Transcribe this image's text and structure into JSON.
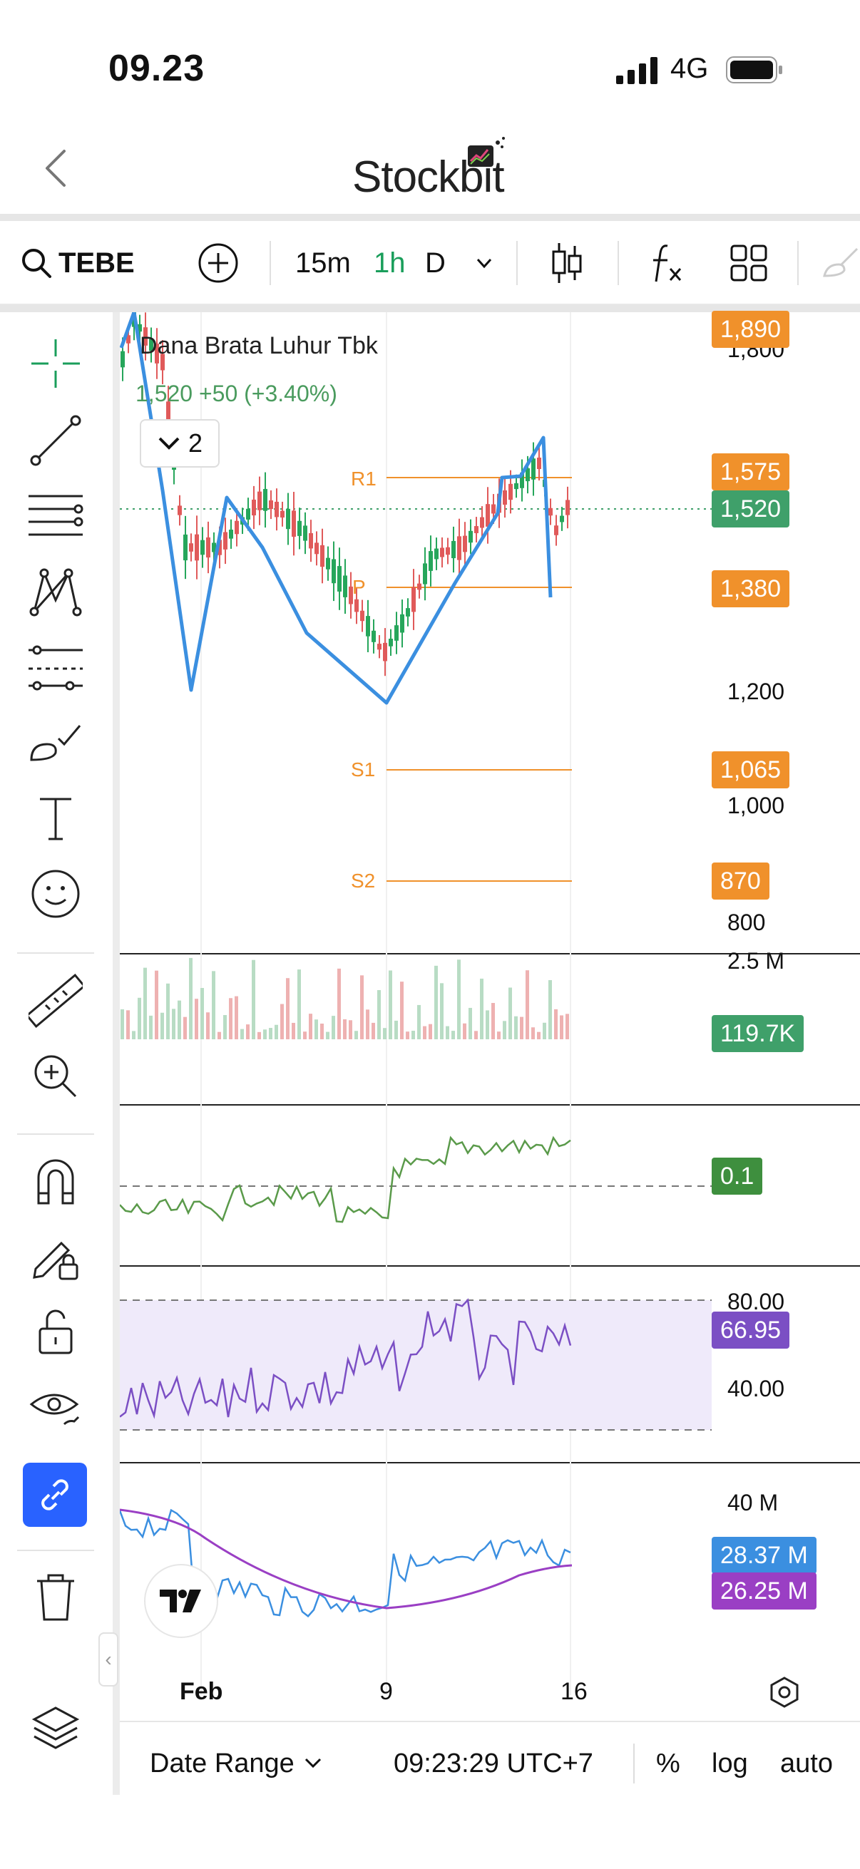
{
  "status": {
    "time": "09.23",
    "network": "4G"
  },
  "header": {
    "brand": "Stockbit"
  },
  "toolbar": {
    "symbol": "TEBE",
    "timeframes": [
      "15m",
      "1h",
      "D"
    ],
    "active_timeframe": "1h"
  },
  "chart": {
    "company": "Dana Brata Luhur Tbk",
    "price_line": "1,520  +50 (+3.40%)",
    "indicators_count": "2",
    "pivots": {
      "r1": "R1",
      "p": "P",
      "s1": "S1",
      "s2": "S2"
    },
    "price_tags": {
      "top": "1,890",
      "r1": "1,575",
      "last": "1,520",
      "p": "1,380",
      "s1": "1,065",
      "s2": "870"
    },
    "axis": {
      "a": "1,800",
      "b": "1,200",
      "c": "1,000",
      "d": "800"
    },
    "volume": {
      "axis_max": "2.5 M",
      "last": "119.7K"
    },
    "osc1": {
      "last": "0.1"
    },
    "rsi": {
      "upper": "80.00",
      "mid": "40.00",
      "last": "66.95"
    },
    "obv": {
      "axis_max": "40 M",
      "value_a": "28.37 M",
      "value_b": "26.25 M"
    },
    "x_labels": [
      "Feb",
      "9",
      "16"
    ],
    "colors": {
      "pivot": "#f0912b",
      "up": "#26a65b",
      "down": "#e05a5a",
      "zigzag": "#3b8fe0",
      "volume_tag": "#3fa06a",
      "rsi": "#7b4fc4",
      "rsi_fill": "#efeafa",
      "obv_a": "#3b8fe0",
      "obv_b": "#9a3fc4"
    }
  },
  "bottom": {
    "date_range": "Date Range",
    "time": "09:23:29 UTC+7",
    "percent": "%",
    "log": "log",
    "auto": "auto"
  },
  "icons": [
    "crosshair-icon",
    "trend-line-icon",
    "fib-icon",
    "pattern-icon",
    "prediction-icon",
    "brush-icon",
    "text-icon",
    "emoji-icon",
    "ruler-icon",
    "zoom-in-icon",
    "magnet-icon",
    "lock-drawing-icon",
    "unlock-icon",
    "eye-icon",
    "link-icon",
    "trash-icon",
    "layers-icon"
  ]
}
